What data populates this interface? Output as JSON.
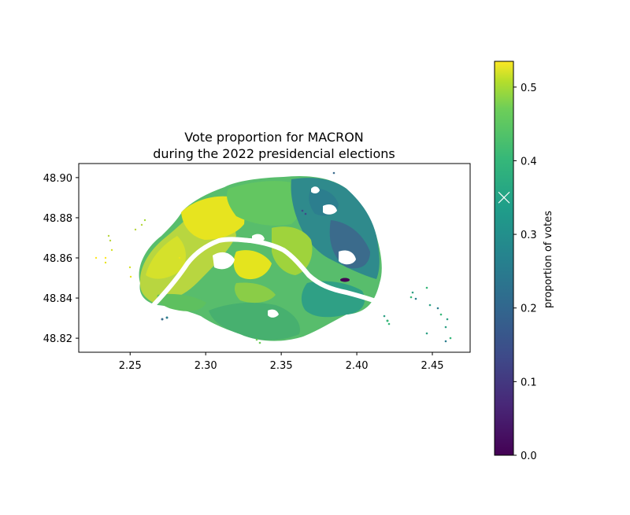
{
  "title": {
    "line1": "Vote proportion for MACRON",
    "line2": "during the 2022 presidencial elections"
  },
  "map": {
    "x_ticks": [
      "2.25",
      "2.30",
      "2.35",
      "2.40",
      "2.45"
    ],
    "y_ticks": [
      "48.90",
      "48.88",
      "48.86",
      "48.84",
      "48.82"
    ],
    "x_values": [
      2.25,
      2.3,
      2.35,
      2.4,
      2.45
    ],
    "y_values": [
      48.9,
      48.88,
      48.86,
      48.84,
      48.82
    ],
    "xlim": [
      2.216,
      2.475
    ],
    "ylim": [
      48.813,
      48.907
    ]
  },
  "colorbar": {
    "label": "proportion of votes",
    "ticks": [
      "0.0",
      "0.1",
      "0.2",
      "0.3",
      "0.4",
      "0.5"
    ],
    "tick_values": [
      0.0,
      0.1,
      0.2,
      0.3,
      0.4,
      0.5
    ],
    "range": [
      0.0,
      0.535
    ],
    "marker_value": 0.35,
    "colors": [
      "#440154",
      "#3b528b",
      "#21918c",
      "#5ec962",
      "#a5db36",
      "#fde725"
    ]
  }
}
